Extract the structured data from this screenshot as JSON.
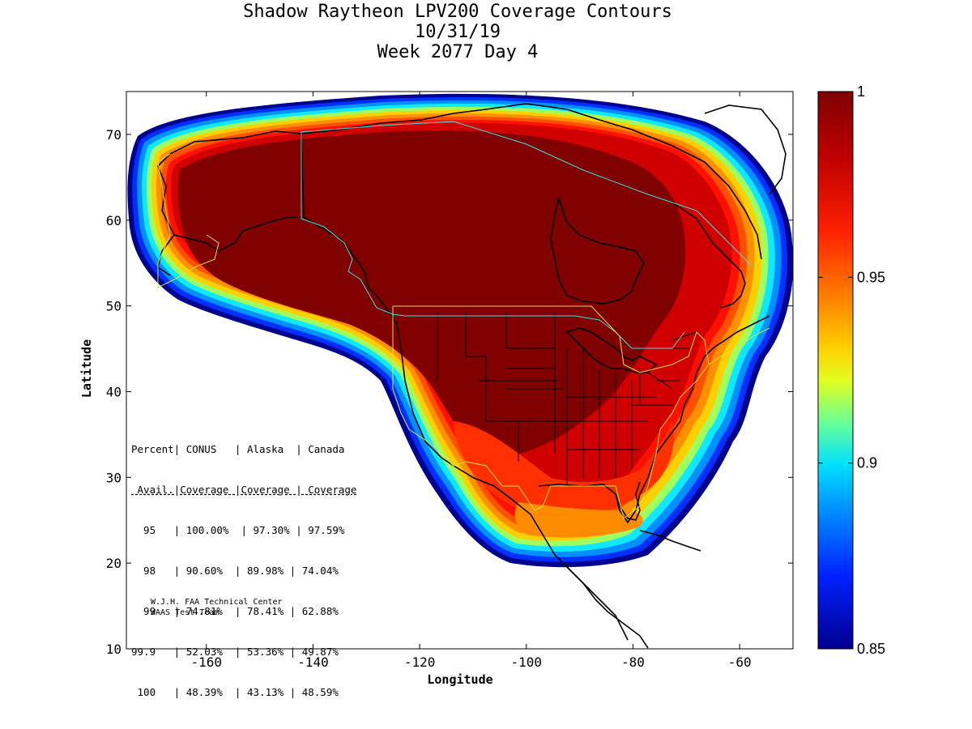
{
  "title": {
    "line1": "Shadow Raytheon LPV200 Coverage Contours",
    "line2": "10/31/19",
    "line3": "Week 2077 Day 4"
  },
  "axes": {
    "xlabel": "Longitude",
    "ylabel": "Latitude",
    "xlim": [
      -175,
      -50
    ],
    "ylim": [
      10,
      75
    ],
    "xticks": [
      -160,
      -140,
      -120,
      -100,
      -80,
      -60
    ],
    "yticks": [
      10,
      20,
      30,
      40,
      50,
      60,
      70
    ]
  },
  "colorbar": {
    "min": 0.85,
    "max": 1,
    "ticks": [
      {
        "value": 1,
        "label": "1"
      },
      {
        "value": 0.95,
        "label": "0.95"
      },
      {
        "value": 0.9,
        "label": "0.9"
      },
      {
        "value": 0.85,
        "label": "0.85"
      }
    ],
    "colors": [
      "#7f0000",
      "#ff0000",
      "#ff8000",
      "#ffff00",
      "#80ff80",
      "#00ffff",
      "#0080ff",
      "#0000ff",
      "#00008f"
    ]
  },
  "table": {
    "header1": "Percent| CONUS   | Alaska  | Canada",
    "header2": " Avail.|Coverage |Coverage | Coverage",
    "rows": [
      "  95   | 100.00%  | 97.30% | 97.59%",
      "  98   | 90.60%  | 89.98% | 74.04%",
      "  99   | 74.81%  | 78.41% | 62.88%",
      "99.9   | 52.03%  | 53.36% | 49.87%",
      " 100   | 48.39%  | 43.13% | 48.59%"
    ]
  },
  "credit": {
    "line1": "W.J.H. FAA Technical Center",
    "line2": "WAAS Test Team"
  }
}
